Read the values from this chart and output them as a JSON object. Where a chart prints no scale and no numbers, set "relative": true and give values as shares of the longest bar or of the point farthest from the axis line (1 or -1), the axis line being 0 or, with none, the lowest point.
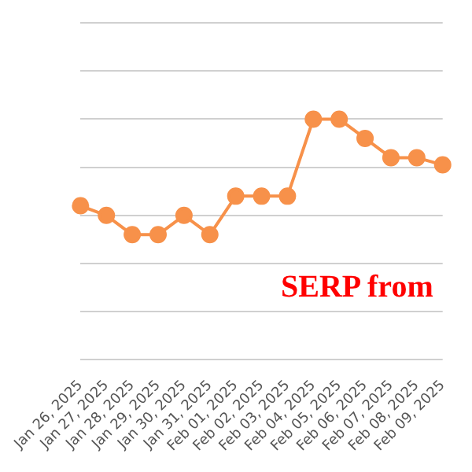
{
  "chart_data": {
    "type": "line",
    "relative": true,
    "categories": [
      "Jan 26, 2025",
      "Jan 27, 2025",
      "Jan 28, 2025",
      "Jan 29, 2025",
      "Jan 30, 2025",
      "Jan 31, 2025",
      "Feb 01, 2025",
      "Feb 02, 2025",
      "Feb 03, 2025",
      "Feb 04, 2025",
      "Feb 05, 2025",
      "Feb 06, 2025",
      "Feb 07, 2025",
      "Feb 08, 2025",
      "Feb 09, 2025"
    ],
    "series": [
      {
        "color": "#f7914a",
        "values": [
          0.64,
          0.6,
          0.52,
          0.52,
          0.6,
          0.52,
          0.68,
          0.68,
          0.68,
          1,
          1,
          0.92,
          0.84,
          0.84,
          0.81
        ]
      }
    ],
    "annotations": [
      "SERP from"
    ],
    "grid": "y",
    "marker": "circle",
    "line_style": "solid",
    "legend": false,
    "tick_labels": "x"
  }
}
